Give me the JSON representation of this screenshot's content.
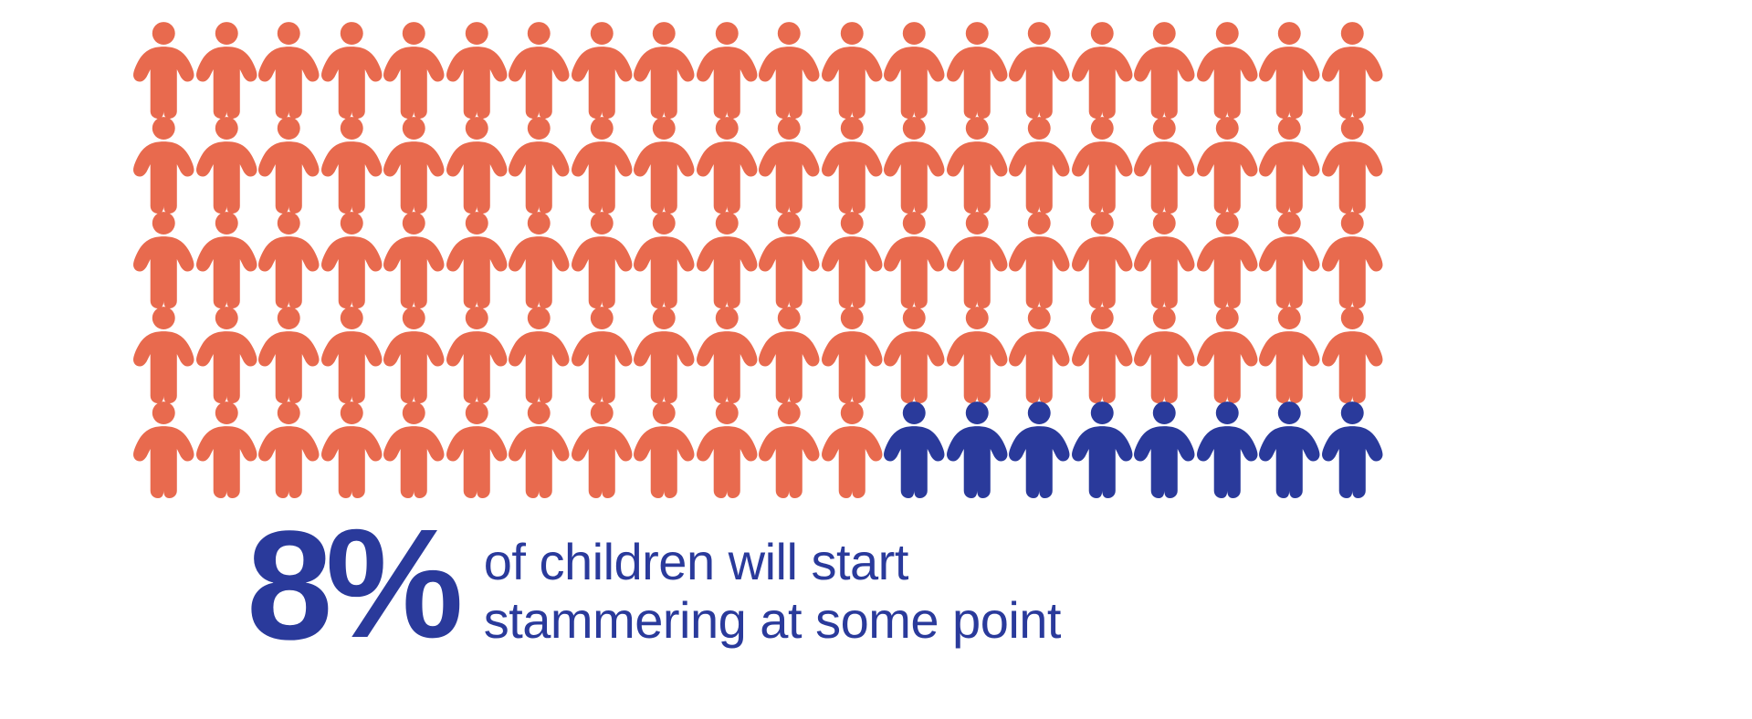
{
  "infographic": {
    "type": "pictogram",
    "total_icons": 100,
    "rows": 5,
    "cols": 20,
    "highlighted_count": 8,
    "highlight_from_end": true,
    "icon_shape": "child-person",
    "majority_color": "#e86a4e",
    "highlight_color": "#2a3a9b",
    "background_color": "#ffffff"
  },
  "stat": {
    "number": "8",
    "percent_symbol": "%",
    "number_fontsize": 170,
    "number_color": "#2a3a9b",
    "number_weight": 900
  },
  "description": {
    "line1": "of children will start",
    "line2": "stammering at some point",
    "fontsize": 56,
    "color": "#2a3a9b",
    "weight": 400
  }
}
